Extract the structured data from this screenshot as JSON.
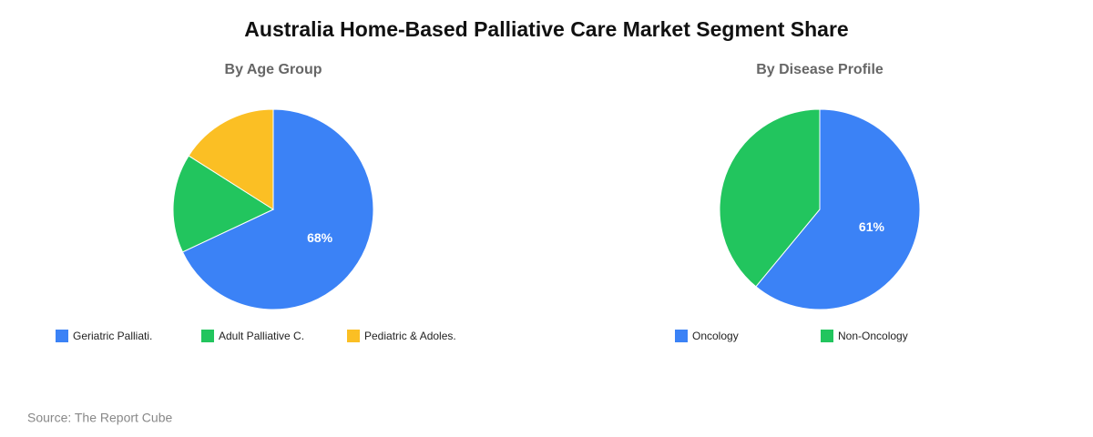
{
  "title": "Australia Home-Based Palliative Care Market Segment Share",
  "source": "Source: The Report Cube",
  "chart_data": [
    {
      "type": "pie",
      "title": "By Age Group",
      "categories": [
        "Geriatric Palliati.",
        "Adult Palliative C.",
        "Pediatric & Adoles."
      ],
      "values": [
        68,
        16,
        16
      ],
      "value_labels": [
        "68%",
        null,
        null
      ],
      "colors": [
        "#3b82f6",
        "#22c55e",
        "#fbbf24"
      ]
    },
    {
      "type": "pie",
      "title": "By Disease Profile",
      "categories": [
        "Oncology",
        "Non-Oncology"
      ],
      "values": [
        61,
        39
      ],
      "value_labels": [
        "61%",
        null
      ],
      "colors": [
        "#3b82f6",
        "#22c55e"
      ]
    }
  ]
}
